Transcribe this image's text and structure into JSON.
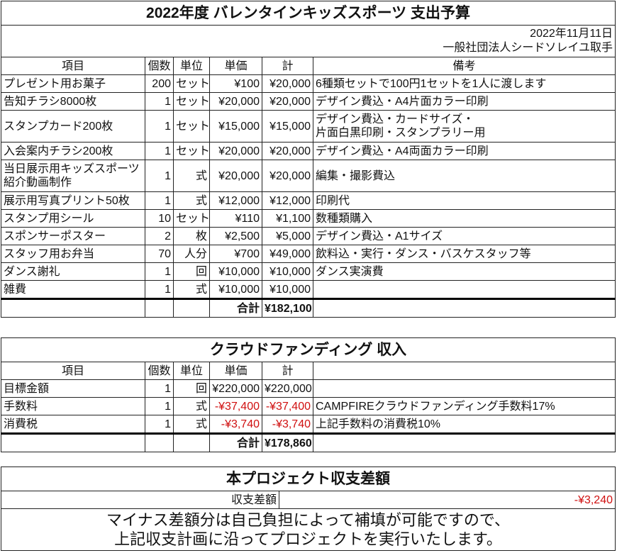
{
  "expense": {
    "title": "2022年度 バレンタインキッズスポーツ 支出予算",
    "date": "2022年11月11日",
    "organization": "一般社団法人シードソレイユ取手",
    "headers": [
      "項目",
      "個数",
      "単位",
      "単価",
      "計",
      "備考"
    ],
    "rows": [
      {
        "item": "プレゼント用お菓子",
        "qty": "200",
        "unit": "セット",
        "price": "¥100",
        "total": "¥20,000",
        "note": "6種類セットで100円1セットを1人に渡します"
      },
      {
        "item": "告知チラシ8000枚",
        "qty": "1",
        "unit": "セット",
        "price": "¥20,000",
        "total": "¥20,000",
        "note": "デザイン費込・A4片面カラー印刷"
      },
      {
        "item": "スタンプカード200枚",
        "qty": "1",
        "unit": "セット",
        "price": "¥15,000",
        "total": "¥15,000",
        "note": "デザイン費込・カードサイズ・\n片面白黒印刷・スタンプラリー用"
      },
      {
        "item": "入会案内チラシ200枚",
        "qty": "1",
        "unit": "セット",
        "price": "¥20,000",
        "total": "¥20,000",
        "note": "デザイン費込・A4両面カラー印刷"
      },
      {
        "item": "当日展示用キッズスポーツ\n紹介動画制作",
        "qty": "1",
        "unit": "式",
        "price": "¥20,000",
        "total": "¥20,000",
        "note": "編集・撮影費込"
      },
      {
        "item": "展示用写真プリント50枚",
        "qty": "1",
        "unit": "式",
        "price": "¥12,000",
        "total": "¥12,000",
        "note": "印刷代"
      },
      {
        "item": "スタンプ用シール",
        "qty": "10",
        "unit": "セット",
        "price": "¥110",
        "total": "¥1,100",
        "note": "数種類購入"
      },
      {
        "item": "スポンサーポスター",
        "qty": "2",
        "unit": "枚",
        "price": "¥2,500",
        "total": "¥5,000",
        "note": "デザイン費込・A1サイズ"
      },
      {
        "item": "スタッフ用お弁当",
        "qty": "70",
        "unit": "人分",
        "price": "¥700",
        "total": "¥49,000",
        "note": "飲料込・実行・ダンス・バスケスタッフ等"
      },
      {
        "item": "ダンス謝礼",
        "qty": "1",
        "unit": "回",
        "price": "¥10,000",
        "total": "¥10,000",
        "note": "ダンス実演費"
      },
      {
        "item": "雑費",
        "qty": "1",
        "unit": "式",
        "price": "¥10,000",
        "total": "¥10,000",
        "note": ""
      }
    ],
    "sum_label": "合計",
    "sum_value": "¥182,100"
  },
  "income": {
    "title": "クラウドファンディング 収入",
    "headers": [
      "項目",
      "個数",
      "単位",
      "単価",
      "計",
      ""
    ],
    "rows": [
      {
        "item": "目標金額",
        "qty": "1",
        "unit": "回",
        "price": "¥220,000",
        "total": "¥220,000",
        "note": "",
        "negative": false
      },
      {
        "item": "手数料",
        "qty": "1",
        "unit": "式",
        "price": "-¥37,400",
        "total": "-¥37,400",
        "note": "CAMPFIREクラウドファンディング手数料17%",
        "negative": true
      },
      {
        "item": "消費税",
        "qty": "1",
        "unit": "式",
        "price": "-¥3,740",
        "total": "-¥3,740",
        "note": "上記手数料の消費税10%",
        "negative": true
      }
    ],
    "sum_label": "合計",
    "sum_value": "¥178,860"
  },
  "balance": {
    "title": "本プロジェクト収支差額",
    "label": "収支差額",
    "value": "-¥3,240",
    "message_line1": "マイナス差額分は自己負担によって補填が可能ですので、",
    "message_line2": "上記収支計画に沿ってプロジェクトを実行いたします。"
  },
  "colors": {
    "negative": "#d01010",
    "border": "#222222"
  }
}
